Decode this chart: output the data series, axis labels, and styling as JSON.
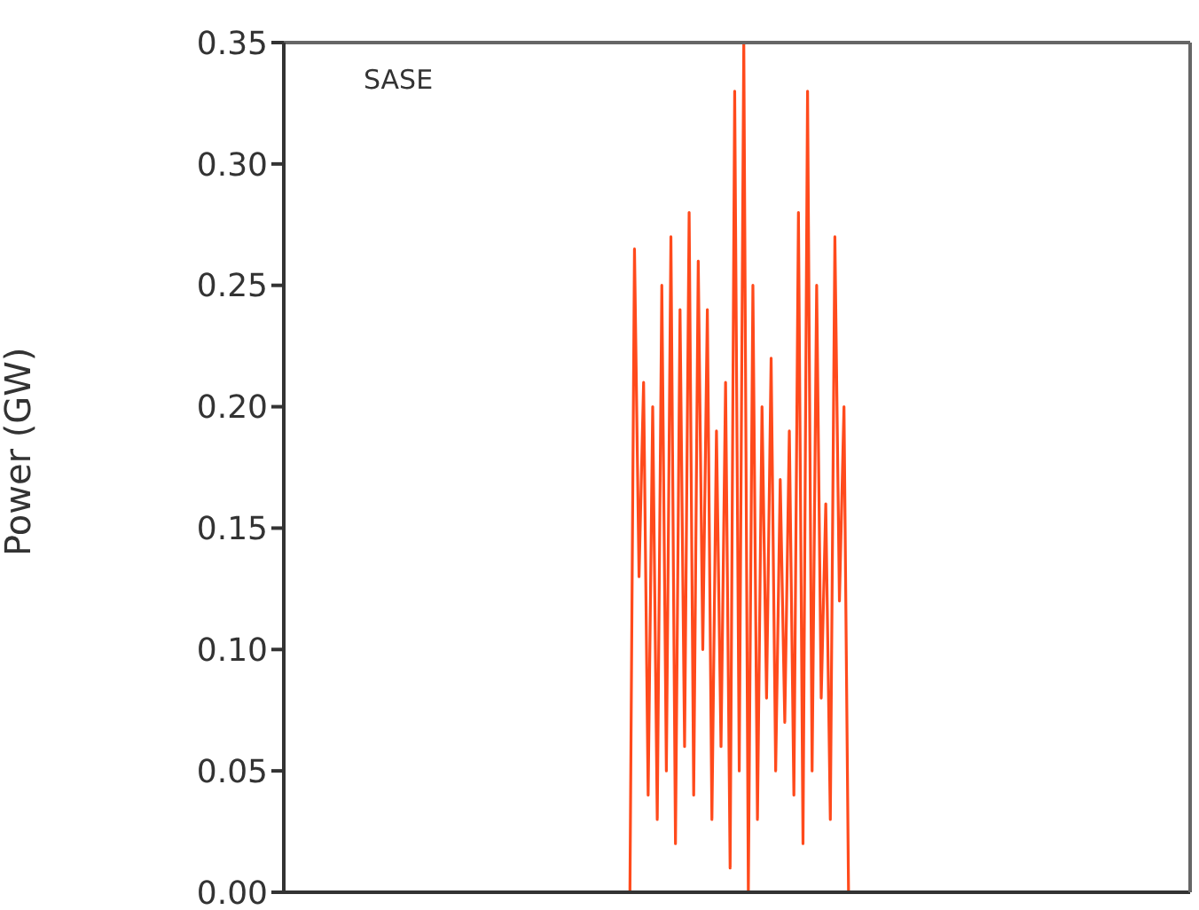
{
  "chart_data": {
    "type": "line",
    "ylabel": "Power (GW)",
    "annotations": [
      "SASE"
    ],
    "categories": [
      null,
      null,
      null,
      null,
      null,
      null,
      null,
      null,
      null,
      null,
      null,
      null,
      null,
      null,
      null,
      null,
      null,
      null,
      null,
      null,
      null,
      null,
      null,
      null,
      null,
      null,
      null,
      null,
      null,
      null,
      null,
      null,
      null,
      null,
      null,
      null,
      null,
      null,
      null,
      null,
      null,
      null,
      null,
      null,
      null,
      null,
      null,
      null,
      null,
      null,
      null,
      null,
      null,
      null,
      null,
      null,
      null,
      null,
      null,
      null,
      null,
      null,
      null,
      null,
      null,
      null,
      null,
      null,
      null,
      null,
      null,
      null,
      null,
      null,
      null,
      null,
      null,
      null,
      null,
      null,
      null,
      null,
      null,
      null,
      null,
      null,
      null,
      null,
      null,
      null,
      null,
      null,
      null,
      null,
      null,
      null,
      null,
      null,
      null,
      null,
      null,
      null,
      null,
      null,
      null,
      null,
      null,
      null,
      null,
      null,
      null,
      null,
      null,
      null,
      null,
      null,
      null,
      null,
      null,
      null,
      null,
      null,
      null,
      null,
      null,
      null,
      null,
      null,
      null,
      null,
      null,
      null,
      null,
      null,
      null,
      null,
      null,
      null,
      null,
      null,
      null,
      null,
      null,
      null,
      null,
      null,
      null,
      null,
      null,
      null,
      null,
      null,
      null,
      null,
      null,
      null,
      null,
      null,
      null,
      null,
      null,
      null,
      null,
      null,
      null,
      null,
      null,
      null,
      null,
      null,
      null,
      null,
      null,
      null,
      null,
      null,
      null,
      null,
      null,
      null,
      null,
      null,
      null,
      null,
      null,
      null,
      null,
      null,
      null,
      null,
      null,
      null,
      null,
      null,
      null,
      null,
      null,
      null,
      null,
      null
    ],
    "series": [
      {
        "color": "#ff4a1c",
        "values": [
          null,
          null,
          null,
          null,
          null,
          null,
          null,
          null,
          null,
          null,
          null,
          null,
          null,
          null,
          null,
          null,
          null,
          null,
          null,
          null,
          null,
          null,
          null,
          null,
          null,
          null,
          null,
          null,
          null,
          null,
          null,
          null,
          null,
          null,
          null,
          null,
          null,
          null,
          null,
          null,
          null,
          null,
          null,
          null,
          null,
          null,
          null,
          null,
          null,
          null,
          null,
          null,
          null,
          null,
          null,
          null,
          null,
          null,
          null,
          null,
          null,
          null,
          null,
          null,
          null,
          null,
          null,
          null,
          null,
          null,
          null,
          null,
          null,
          null,
          null,
          null,
          0,
          0.265,
          0.13,
          0.21,
          0.04,
          0.2,
          0.03,
          0.25,
          0.05,
          0.27,
          0.02,
          0.24,
          0.06,
          0.28,
          0.04,
          0.26,
          0.1,
          0.24,
          0.03,
          0.19,
          0.06,
          0.21,
          0.01,
          0.33,
          0.05,
          0.35,
          0,
          0.25,
          0.03,
          0.2,
          0.08,
          0.22,
          0.05,
          0.17,
          0.07,
          0.19,
          0.04,
          0.28,
          0.02,
          0.33,
          0.05,
          0.25,
          0.08,
          0.16,
          0.03,
          0.27,
          0.12,
          0.2,
          0,
          null,
          null,
          null,
          null,
          null,
          null,
          null,
          null,
          null,
          null,
          null,
          null,
          null,
          null,
          null,
          null,
          null,
          null,
          null,
          null,
          null,
          null,
          null,
          null,
          null,
          null,
          null,
          null,
          null,
          null,
          null,
          null,
          null,
          null,
          null,
          null,
          null,
          null,
          null,
          null,
          null,
          null,
          null,
          null,
          null,
          null,
          null,
          null,
          null,
          null,
          null,
          null,
          null,
          null,
          null,
          null,
          null,
          null,
          null,
          null,
          null,
          null,
          null,
          null,
          null,
          null,
          null,
          null,
          null,
          null,
          null,
          null,
          null,
          null,
          null
        ]
      }
    ],
    "ylim": [
      0,
      0.35
    ],
    "yticks": [
      {
        "value": 0,
        "label": "0.00"
      },
      0.05,
      {
        "value": 0.1,
        "label": "0.10"
      },
      0.15,
      {
        "value": 0.2,
        "label": "0.20"
      },
      0.25,
      {
        "value": 0.3,
        "label": "0.30"
      },
      0.35
    ],
    "tick_labels": "y",
    "grid": false,
    "legend": false,
    "marker": "none",
    "line_style": "solid"
  }
}
